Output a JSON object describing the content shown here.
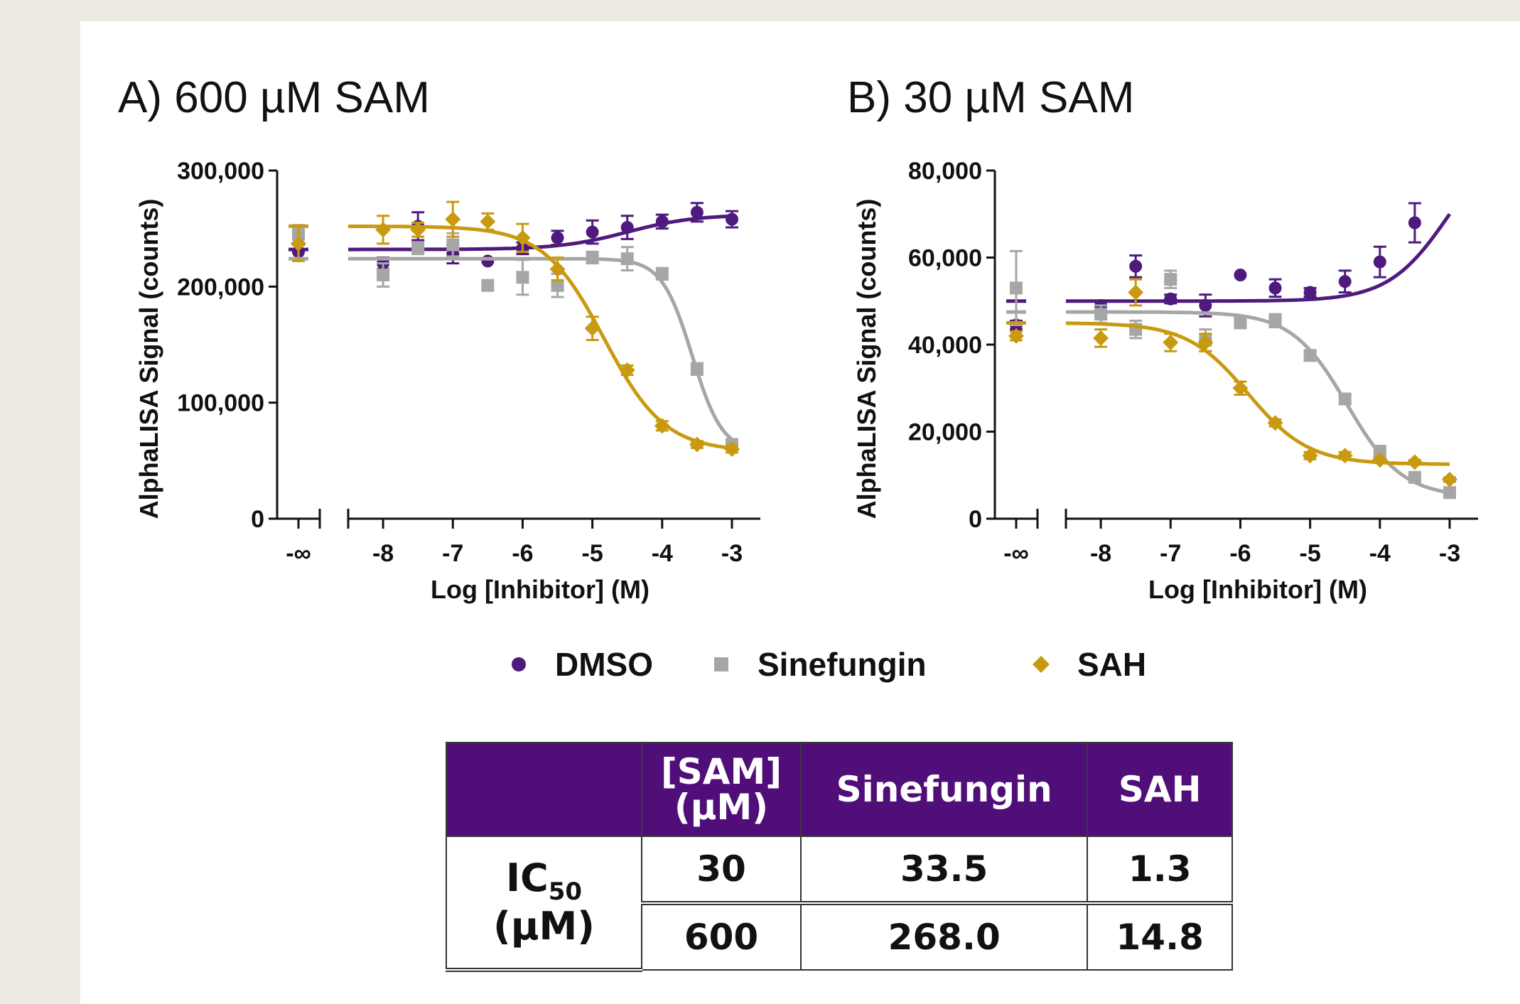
{
  "chart_data": [
    {
      "type": "scatter",
      "title": "A) 600 µM SAM",
      "xlabel": "Log [Inhibitor] (M)",
      "ylabel": "AlphaLISA Signal (counts)",
      "xlim": [
        -8.5,
        -3
      ],
      "ylim": [
        0,
        300000
      ],
      "x_ticks": [
        "-∞",
        "-8",
        "-7",
        "-6",
        "-5",
        "-4",
        "-3"
      ],
      "y_ticks": [
        "0",
        "100,000",
        "200,000",
        "300,000"
      ],
      "x_break": true,
      "series": [
        {
          "name": "DMSO",
          "color": "#4f1a7d",
          "marker": "circle",
          "points": [
            {
              "x": "-inf",
              "y": 230000,
              "err": 6000
            },
            {
              "x": -8.0,
              "y": 220000,
              "err": 5000
            },
            {
              "x": -7.5,
              "y": 252000,
              "err": 12000
            },
            {
              "x": -7.0,
              "y": 228000,
              "err": 8000
            },
            {
              "x": -6.5,
              "y": 222000,
              "err": 0
            },
            {
              "x": -6.0,
              "y": 233000,
              "err": 5000
            },
            {
              "x": -5.5,
              "y": 242000,
              "err": 6000
            },
            {
              "x": -5.0,
              "y": 247000,
              "err": 10000
            },
            {
              "x": -4.5,
              "y": 251000,
              "err": 10000
            },
            {
              "x": -4.0,
              "y": 256000,
              "err": 6000
            },
            {
              "x": -3.5,
              "y": 264000,
              "err": 8000
            },
            {
              "x": -3.0,
              "y": 258000,
              "err": 7000
            }
          ],
          "fit": {
            "bottom": 232000,
            "top": 262000,
            "log_ec50": -4.5,
            "hill": 0.9
          }
        },
        {
          "name": "Sinefungin",
          "color": "#a6a6a6",
          "marker": "square",
          "points": [
            {
              "x": "-inf",
              "y": 245000,
              "err": 8000
            },
            {
              "x": -8.0,
              "y": 210000,
              "err": 10000
            },
            {
              "x": -7.5,
              "y": 233000,
              "err": 5000
            },
            {
              "x": -7.0,
              "y": 236000,
              "err": 10000
            },
            {
              "x": -6.5,
              "y": 201000,
              "err": 0
            },
            {
              "x": -6.0,
              "y": 208000,
              "err": 15000
            },
            {
              "x": -5.5,
              "y": 201000,
              "err": 10000
            },
            {
              "x": -5.0,
              "y": 225000,
              "err": 5000
            },
            {
              "x": -4.5,
              "y": 224000,
              "err": 10000
            },
            {
              "x": -4.0,
              "y": 211000,
              "err": 5000
            },
            {
              "x": -3.5,
              "y": 129000,
              "err": 5000
            },
            {
              "x": -3.0,
              "y": 64000,
              "err": 4000
            }
          ],
          "fit": {
            "bottom": 57000,
            "top": 224000,
            "log_ec50": -3.57,
            "hill": 2.0
          }
        },
        {
          "name": "SAH",
          "color": "#c99a0f",
          "marker": "diamond",
          "points": [
            {
              "x": "-inf",
              "y": 237000,
              "err": 15000
            },
            {
              "x": -8.0,
              "y": 249000,
              "err": 12000
            },
            {
              "x": -7.5,
              "y": 249000,
              "err": 6000
            },
            {
              "x": -7.0,
              "y": 258000,
              "err": 15000
            },
            {
              "x": -6.5,
              "y": 256000,
              "err": 7000
            },
            {
              "x": -6.0,
              "y": 242000,
              "err": 12000
            },
            {
              "x": -5.5,
              "y": 215000,
              "err": 10000
            },
            {
              "x": -5.0,
              "y": 164000,
              "err": 10000
            },
            {
              "x": -4.5,
              "y": 128000,
              "err": 4000
            },
            {
              "x": -4.0,
              "y": 80000,
              "err": 4000
            },
            {
              "x": -3.5,
              "y": 64000,
              "err": 3000
            },
            {
              "x": -3.0,
              "y": 60000,
              "err": 3000
            }
          ],
          "fit": {
            "bottom": 58000,
            "top": 252000,
            "log_ec50": -4.83,
            "hill": 1.0
          }
        }
      ]
    },
    {
      "type": "scatter",
      "title": "B) 30 µM SAM",
      "xlabel": "Log [Inhibitor] (M)",
      "ylabel": "AlphaLISA Signal (counts)",
      "xlim": [
        -8.5,
        -3
      ],
      "ylim": [
        0,
        80000
      ],
      "x_ticks": [
        "-∞",
        "-8",
        "-7",
        "-6",
        "-5",
        "-4",
        "-3"
      ],
      "y_ticks": [
        "0",
        "20,000",
        "40,000",
        "60,000",
        "80,000"
      ],
      "x_break": true,
      "series": [
        {
          "name": "DMSO",
          "color": "#4f1a7d",
          "marker": "circle",
          "points": [
            {
              "x": "-inf",
              "y": 44500,
              "err": 1000
            },
            {
              "x": -8.0,
              "y": 49000,
              "err": 1000
            },
            {
              "x": -7.5,
              "y": 58000,
              "err": 2500
            },
            {
              "x": -7.0,
              "y": 50500,
              "err": 1000
            },
            {
              "x": -6.5,
              "y": 49000,
              "err": 2500
            },
            {
              "x": -6.0,
              "y": 56000,
              "err": 0
            },
            {
              "x": -5.5,
              "y": 53000,
              "err": 2000
            },
            {
              "x": -5.0,
              "y": 52000,
              "err": 1000
            },
            {
              "x": -4.5,
              "y": 54500,
              "err": 2500
            },
            {
              "x": -4.0,
              "y": 59000,
              "err": 3500
            },
            {
              "x": -3.5,
              "y": 68000,
              "err": 4500
            }
          ],
          "fit": {
            "bottom": 50000,
            "top": 90000,
            "log_ec50": -3.0,
            "hill": 1.0
          }
        },
        {
          "name": "Sinefungin",
          "color": "#a6a6a6",
          "marker": "square",
          "points": [
            {
              "x": "-inf",
              "y": 53000,
              "err": 8500
            },
            {
              "x": -8.0,
              "y": 47000,
              "err": 2000
            },
            {
              "x": -7.5,
              "y": 43500,
              "err": 2000
            },
            {
              "x": -7.0,
              "y": 55000,
              "err": 2000
            },
            {
              "x": -6.5,
              "y": 41000,
              "err": 2500
            },
            {
              "x": -6.0,
              "y": 45000,
              "err": 1000
            },
            {
              "x": -5.5,
              "y": 45500,
              "err": 1500
            },
            {
              "x": -5.0,
              "y": 37500,
              "err": 1000
            },
            {
              "x": -4.5,
              "y": 27500,
              "err": 1000
            },
            {
              "x": -4.0,
              "y": 15500,
              "err": 1000
            },
            {
              "x": -3.5,
              "y": 9500,
              "err": 1000
            },
            {
              "x": -3.0,
              "y": 6000,
              "err": 500
            }
          ],
          "fit": {
            "bottom": 5000,
            "top": 47500,
            "log_ec50": -4.47,
            "hill": 1.1
          }
        },
        {
          "name": "SAH",
          "color": "#c99a0f",
          "marker": "diamond",
          "points": [
            {
              "x": "-inf",
              "y": 42000,
              "err": 1000
            },
            {
              "x": -8.0,
              "y": 41500,
              "err": 2000
            },
            {
              "x": -7.5,
              "y": 52000,
              "err": 3000
            },
            {
              "x": -7.0,
              "y": 40500,
              "err": 2000
            },
            {
              "x": -6.5,
              "y": 40500,
              "err": 2000
            },
            {
              "x": -6.0,
              "y": 30000,
              "err": 1500
            },
            {
              "x": -5.5,
              "y": 22000,
              "err": 800
            },
            {
              "x": -5.0,
              "y": 14500,
              "err": 800
            },
            {
              "x": -4.5,
              "y": 14500,
              "err": 800
            },
            {
              "x": -4.0,
              "y": 13500,
              "err": 500
            },
            {
              "x": -3.5,
              "y": 13000,
              "err": 500
            },
            {
              "x": -3.0,
              "y": 9000,
              "err": 500
            }
          ],
          "fit": {
            "bottom": 12500,
            "top": 45000,
            "log_ec50": -5.89,
            "hill": 1.0
          }
        }
      ]
    }
  ],
  "legend": [
    {
      "name": "DMSO",
      "marker": "circle",
      "color": "#4f1a7d"
    },
    {
      "name": "Sinefungin",
      "marker": "square",
      "color": "#a6a6a6"
    },
    {
      "name": "SAH",
      "marker": "diamond",
      "color": "#c99a0f"
    }
  ],
  "table": {
    "header": {
      "blank": "",
      "sam_line1": "[SAM]",
      "sam_line2": "(µM)",
      "sinefungin": "Sinefungin",
      "sah": "SAH"
    },
    "row_label": {
      "main": "IC",
      "sub": "50",
      "unit": "(µM)"
    },
    "rows": [
      {
        "sam": "30",
        "sinefungin": "33.5",
        "sah": "1.3"
      },
      {
        "sam": "600",
        "sinefungin": "268.0",
        "sah": "14.8"
      }
    ],
    "header_color": "#4f0e78"
  }
}
